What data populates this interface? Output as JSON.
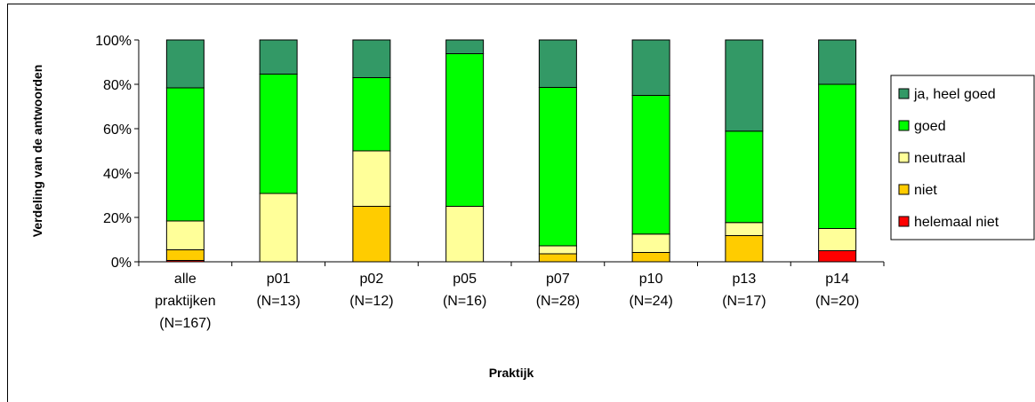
{
  "chart_data": {
    "type": "bar",
    "stacked": true,
    "percent_axis": true,
    "ylabel": "Verdeling van de antwoorden",
    "xlabel": "Praktijk",
    "ylim": [
      0,
      100
    ],
    "yticks": [
      "0%",
      "20%",
      "40%",
      "60%",
      "80%",
      "100%"
    ],
    "categories": [
      [
        "alle",
        "praktijken",
        "(N=167)"
      ],
      [
        "p01",
        "(N=13)"
      ],
      [
        "p02",
        "(N=12)"
      ],
      [
        "p05",
        "(N=16)"
      ],
      [
        "p07",
        "(N=28)"
      ],
      [
        "p10",
        "(N=24)"
      ],
      [
        "p13",
        "(N=17)"
      ],
      [
        "p14",
        "(N=20)"
      ]
    ],
    "legend_position": "right",
    "series": [
      {
        "name": "helemaal niet",
        "color": "#ff0000",
        "values": [
          0.6,
          0,
          0,
          0,
          0,
          0,
          0,
          5
        ]
      },
      {
        "name": "niet",
        "color": "#ffcc00",
        "values": [
          4.8,
          0,
          25,
          0,
          3.6,
          4.2,
          11.8,
          0
        ]
      },
      {
        "name": "neutraal",
        "color": "#ffff99",
        "values": [
          13,
          30.8,
          25,
          25,
          3.6,
          8.3,
          5.9,
          10
        ]
      },
      {
        "name": "goed",
        "color": "#00ff00",
        "values": [
          60,
          53.8,
          33,
          68.8,
          71.4,
          62.5,
          41.2,
          65
        ]
      },
      {
        "name": "ja, heel goed",
        "color": "#339966",
        "values": [
          21.6,
          15.4,
          17,
          6.2,
          21.4,
          25,
          41.1,
          20
        ]
      }
    ],
    "legend_order": [
      "ja, heel goed",
      "goed",
      "neutraal",
      "niet",
      "helemaal niet"
    ]
  }
}
